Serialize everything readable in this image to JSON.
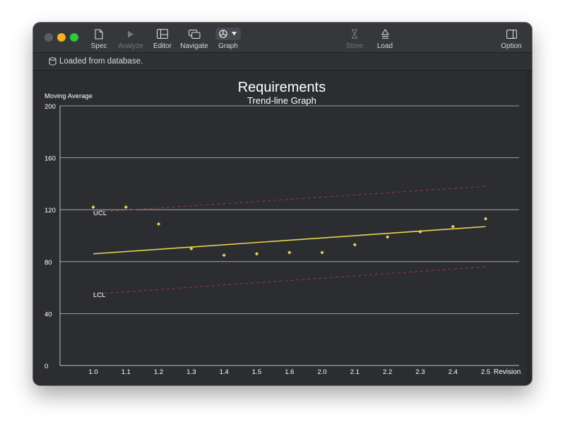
{
  "toolbar": {
    "items": [
      {
        "label": "Spec",
        "icon": "document-icon",
        "enabled": true
      },
      {
        "label": "Analyze",
        "icon": "play-icon",
        "enabled": false
      },
      {
        "label": "Editor",
        "icon": "sidebar-layout-icon",
        "enabled": true
      },
      {
        "label": "Navigate",
        "icon": "windows-icon",
        "enabled": true
      },
      {
        "label": "Graph",
        "icon": "pie-chart-icon",
        "enabled": true
      },
      {
        "label": "Store",
        "icon": "hourglass-icon",
        "enabled": false
      },
      {
        "label": "Load",
        "icon": "upload-icon",
        "enabled": true
      },
      {
        "label": "Option",
        "icon": "sidebar-right-icon",
        "enabled": true
      }
    ]
  },
  "status": {
    "text": "Loaded from database.",
    "icon": "database-icon"
  },
  "colors": {
    "background": "#2b2d31",
    "trend": "#e8d44d",
    "points": "#e6d060",
    "limits": "#8b3a3a",
    "grid": "#bdbdbd",
    "text": "#ffffff"
  },
  "chart_data": {
    "type": "scatter",
    "title": "Requirements",
    "subtitle": "Trend-line Graph",
    "ylabel": "Moving Average",
    "xlabel": "Revision",
    "categories": [
      "1.0",
      "1.1",
      "1.2",
      "1.3",
      "1.4",
      "1.5",
      "1.6",
      "2.0",
      "2.1",
      "2.2",
      "2.3",
      "2.4",
      "2.5"
    ],
    "ylim": [
      0,
      200
    ],
    "yticks": [
      0,
      40,
      80,
      120,
      160,
      200
    ],
    "grid": true,
    "points": [
      122,
      122,
      109,
      90,
      85,
      86,
      87,
      87,
      93,
      99,
      103,
      107,
      113
    ],
    "trend": {
      "start": 86,
      "end": 107
    },
    "ucl": {
      "label": "UCL",
      "start": 118,
      "end": 138
    },
    "lcl": {
      "label": "LCL",
      "start": 55,
      "end": 76
    }
  }
}
